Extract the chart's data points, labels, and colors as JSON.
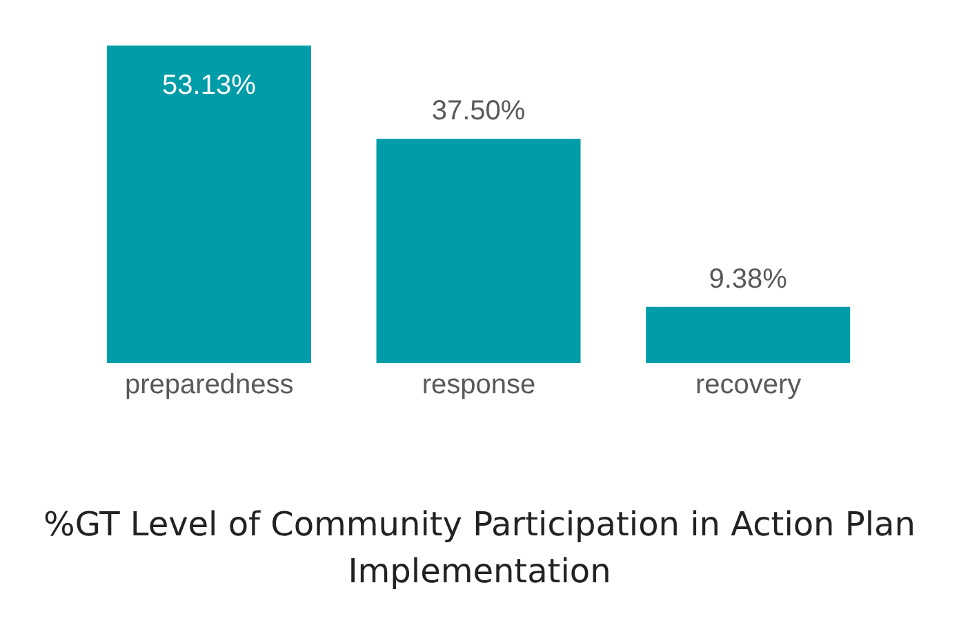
{
  "chart_data": {
    "type": "bar",
    "title": "%GT Level of Community Participation in Action Plan Implementation",
    "categories": [
      "preparedness",
      "response",
      "recovery"
    ],
    "values": [
      53.13,
      37.5,
      9.38
    ],
    "value_labels": [
      "53.13%",
      "37.50%",
      "9.38%"
    ],
    "color": "#009ca8",
    "grid": false,
    "legend": false
  }
}
